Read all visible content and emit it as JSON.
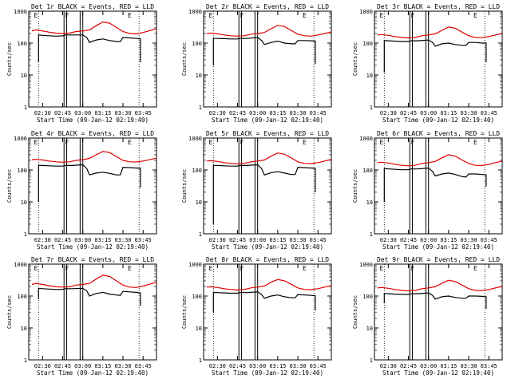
{
  "figure": {
    "panel_title_suffix": "BLACK = Events, RED = LLD",
    "ylabel": "Counts/sec",
    "xlabel": "Start Time (09-Jan-12 02:19:40)",
    "xticks": [
      "02:30",
      "02:45",
      "03:00",
      "03:15",
      "03:30",
      "03:45"
    ],
    "yticks": [
      "1",
      "10",
      "100",
      "1000"
    ],
    "marker_labels": [
      "E",
      "F",
      "E"
    ]
  },
  "colors": {
    "events": "#000000",
    "lld": "#e00000",
    "axes": "#000000"
  },
  "chart_data": [
    {
      "type": "line",
      "title": "Det 1r BLACK = Events, RED = LLD",
      "xlabel": "Start Time (09-Jan-12 02:19:40)",
      "ylabel": "Counts/sec",
      "yscale": "log",
      "ylim": [
        1,
        1000
      ],
      "xlim": [
        "02:19:40",
        "03:55"
      ],
      "series": [
        {
          "name": "Events",
          "x": [
            "02:27",
            "02:27",
            "02:30",
            "02:35",
            "02:40",
            "02:45",
            "02:47",
            "02:52",
            "03:00",
            "03:03",
            "03:05",
            "03:10",
            "03:15",
            "03:20",
            "03:25",
            "03:28",
            "03:30",
            "03:35",
            "03:40",
            "03:43",
            "03:43"
          ],
          "y": [
            25,
            180,
            175,
            170,
            165,
            168,
            180,
            180,
            180,
            150,
            105,
            125,
            135,
            120,
            112,
            110,
            150,
            145,
            140,
            135,
            25
          ]
        },
        {
          "name": "LLD",
          "x": [
            "02:22",
            "02:25",
            "02:30",
            "02:35",
            "02:40",
            "02:45",
            "02:50",
            "02:55",
            "03:00",
            "03:05",
            "03:10",
            "03:15",
            "03:20",
            "03:25",
            "03:30",
            "03:35",
            "03:40",
            "03:45",
            "03:50",
            "03:55"
          ],
          "y": [
            240,
            260,
            240,
            220,
            205,
            200,
            205,
            230,
            240,
            260,
            350,
            460,
            420,
            310,
            230,
            200,
            195,
            215,
            245,
            280
          ]
        }
      ]
    },
    {
      "type": "line",
      "title": "Det 2r BLACK = Events, RED = LLD",
      "xlabel": "Start Time (09-Jan-12 02:19:40)",
      "ylabel": "Counts/sec",
      "yscale": "log",
      "ylim": [
        1,
        1000
      ],
      "xlim": [
        "02:19:40",
        "03:55"
      ],
      "series": [
        {
          "name": "Events",
          "x": [
            "02:27",
            "02:27",
            "02:30",
            "02:35",
            "02:40",
            "02:45",
            "02:47",
            "02:52",
            "03:00",
            "03:03",
            "03:05",
            "03:10",
            "03:15",
            "03:20",
            "03:25",
            "03:28",
            "03:30",
            "03:35",
            "03:40",
            "03:43",
            "03:43"
          ],
          "y": [
            20,
            140,
            140,
            138,
            135,
            135,
            140,
            140,
            150,
            120,
            90,
            105,
            115,
            100,
            95,
            95,
            120,
            120,
            118,
            115,
            22
          ]
        },
        {
          "name": "LLD",
          "x": [
            "02:22",
            "02:25",
            "02:30",
            "02:35",
            "02:40",
            "02:45",
            "02:50",
            "02:55",
            "03:00",
            "03:05",
            "03:10",
            "03:15",
            "03:20",
            "03:25",
            "03:30",
            "03:35",
            "03:40",
            "03:45",
            "03:50",
            "03:55"
          ],
          "y": [
            200,
            205,
            195,
            180,
            170,
            165,
            170,
            190,
            200,
            215,
            280,
            360,
            330,
            250,
            190,
            170,
            165,
            180,
            200,
            225
          ]
        }
      ]
    },
    {
      "type": "line",
      "title": "Det 3r BLACK = Events, RED = LLD",
      "xlabel": "Start Time (09-Jan-12 02:19:40)",
      "ylabel": "Counts/sec",
      "yscale": "log",
      "ylim": [
        1,
        1000
      ],
      "xlim": [
        "02:19:40",
        "03:55"
      ],
      "series": [
        {
          "name": "Events",
          "x": [
            "02:27",
            "02:27",
            "02:30",
            "02:35",
            "02:40",
            "02:45",
            "02:47",
            "02:52",
            "03:00",
            "03:03",
            "03:05",
            "03:10",
            "03:15",
            "03:20",
            "03:25",
            "03:28",
            "03:30",
            "03:35",
            "03:40",
            "03:43",
            "03:43"
          ],
          "y": [
            12,
            120,
            118,
            115,
            112,
            112,
            118,
            118,
            125,
            105,
            80,
            95,
            100,
            90,
            85,
            85,
            105,
            105,
            100,
            100,
            25
          ]
        },
        {
          "name": "LLD",
          "x": [
            "02:22",
            "02:25",
            "02:30",
            "02:35",
            "02:40",
            "02:45",
            "02:50",
            "02:55",
            "03:00",
            "03:05",
            "03:10",
            "03:15",
            "03:20",
            "03:25",
            "03:30",
            "03:35",
            "03:40",
            "03:45",
            "03:50",
            "03:55"
          ],
          "y": [
            180,
            185,
            175,
            160,
            150,
            145,
            150,
            170,
            180,
            195,
            250,
            320,
            290,
            220,
            170,
            150,
            148,
            160,
            180,
            200
          ]
        }
      ]
    },
    {
      "type": "line",
      "title": "Det 4r BLACK = Events, RED = LLD",
      "xlabel": "Start Time (09-Jan-12 02:19:40)",
      "ylabel": "Counts/sec",
      "yscale": "log",
      "ylim": [
        1,
        1000
      ],
      "xlim": [
        "02:19:40",
        "03:55"
      ],
      "series": [
        {
          "name": "Events",
          "x": [
            "02:27",
            "02:27",
            "02:30",
            "02:35",
            "02:40",
            "02:45",
            "02:47",
            "02:52",
            "03:00",
            "03:03",
            "03:05",
            "03:10",
            "03:15",
            "03:20",
            "03:25",
            "03:28",
            "03:30",
            "03:35",
            "03:40",
            "03:43",
            "03:43"
          ],
          "y": [
            10,
            140,
            138,
            135,
            132,
            132,
            138,
            138,
            145,
            110,
            70,
            80,
            85,
            78,
            70,
            70,
            120,
            118,
            115,
            112,
            28
          ]
        },
        {
          "name": "LLD",
          "x": [
            "02:22",
            "02:25",
            "02:30",
            "02:35",
            "02:40",
            "02:45",
            "02:50",
            "02:55",
            "03:00",
            "03:05",
            "03:10",
            "03:15",
            "03:20",
            "03:25",
            "03:30",
            "03:35",
            "03:40",
            "03:45",
            "03:50",
            "03:55"
          ],
          "y": [
            210,
            215,
            205,
            190,
            180,
            175,
            180,
            200,
            210,
            230,
            300,
            380,
            350,
            265,
            200,
            180,
            178,
            190,
            210,
            235
          ]
        }
      ]
    },
    {
      "type": "line",
      "title": "Det 5r BLACK = Events, RED = LLD",
      "xlabel": "Start Time (09-Jan-12 02:19:40)",
      "ylabel": "Counts/sec",
      "yscale": "log",
      "ylim": [
        1,
        1000
      ],
      "xlim": [
        "02:19:40",
        "03:55"
      ],
      "series": [
        {
          "name": "Events",
          "x": [
            "02:27",
            "02:27",
            "02:30",
            "02:35",
            "02:40",
            "02:45",
            "02:47",
            "02:52",
            "03:00",
            "03:03",
            "03:05",
            "03:10",
            "03:15",
            "03:20",
            "03:25",
            "03:28",
            "03:30",
            "03:35",
            "03:40",
            "03:43",
            "03:43"
          ],
          "y": [
            2,
            140,
            138,
            135,
            132,
            132,
            138,
            138,
            145,
            110,
            70,
            82,
            88,
            80,
            72,
            72,
            120,
            118,
            115,
            112,
            20
          ]
        },
        {
          "name": "LLD",
          "x": [
            "02:22",
            "02:25",
            "02:30",
            "02:35",
            "02:40",
            "02:45",
            "02:50",
            "02:55",
            "03:00",
            "03:05",
            "03:10",
            "03:15",
            "03:20",
            "03:25",
            "03:30",
            "03:35",
            "03:40",
            "03:45",
            "03:50",
            "03:55"
          ],
          "y": [
            190,
            195,
            185,
            170,
            160,
            155,
            160,
            180,
            190,
            205,
            270,
            340,
            310,
            240,
            180,
            160,
            158,
            170,
            190,
            215
          ]
        }
      ]
    },
    {
      "type": "line",
      "title": "Det 6r BLACK = Events, RED = LLD",
      "xlabel": "Start Time (09-Jan-12 02:19:40)",
      "ylabel": "Counts/sec",
      "yscale": "log",
      "ylim": [
        1,
        1000
      ],
      "xlim": [
        "02:19:40",
        "03:55"
      ],
      "series": [
        {
          "name": "Events",
          "x": [
            "02:27",
            "02:27",
            "02:30",
            "02:35",
            "02:40",
            "02:45",
            "02:47",
            "02:52",
            "03:00",
            "03:03",
            "03:05",
            "03:10",
            "03:15",
            "03:20",
            "03:25",
            "03:28",
            "03:30",
            "03:35",
            "03:40",
            "03:43",
            "03:43"
          ],
          "y": [
            10,
            110,
            108,
            105,
            102,
            102,
            108,
            108,
            115,
            90,
            65,
            75,
            80,
            72,
            62,
            60,
            75,
            75,
            72,
            70,
            30
          ]
        },
        {
          "name": "LLD",
          "x": [
            "02:22",
            "02:25",
            "02:30",
            "02:35",
            "02:40",
            "02:45",
            "02:50",
            "02:55",
            "03:00",
            "03:05",
            "03:10",
            "03:15",
            "03:20",
            "03:25",
            "03:30",
            "03:35",
            "03:40",
            "03:45",
            "03:50",
            "03:55"
          ],
          "y": [
            170,
            175,
            165,
            150,
            140,
            135,
            140,
            160,
            170,
            185,
            240,
            300,
            270,
            205,
            160,
            140,
            138,
            150,
            170,
            190
          ]
        }
      ]
    },
    {
      "type": "line",
      "title": "Det 7r BLACK = Events, RED = LLD",
      "xlabel": "Start Time (09-Jan-12 02:19:40)",
      "ylabel": "Counts/sec",
      "yscale": "log",
      "ylim": [
        1,
        1000
      ],
      "xlim": [
        "02:19:40",
        "03:55"
      ],
      "series": [
        {
          "name": "Events",
          "x": [
            "02:27",
            "02:27",
            "02:30",
            "02:35",
            "02:40",
            "02:45",
            "02:47",
            "02:52",
            "03:00",
            "03:03",
            "03:05",
            "03:10",
            "03:15",
            "03:20",
            "03:25",
            "03:28",
            "03:30",
            "03:35",
            "03:40",
            "03:43",
            "03:43"
          ],
          "y": [
            80,
            175,
            170,
            165,
            160,
            162,
            170,
            170,
            175,
            145,
            100,
            120,
            130,
            115,
            108,
            105,
            140,
            135,
            130,
            125,
            50
          ]
        },
        {
          "name": "LLD",
          "x": [
            "02:22",
            "02:25",
            "02:30",
            "02:35",
            "02:40",
            "02:45",
            "02:50",
            "02:55",
            "03:00",
            "03:05",
            "03:10",
            "03:15",
            "03:20",
            "03:25",
            "03:30",
            "03:35",
            "03:40",
            "03:45",
            "03:50",
            "03:55"
          ],
          "y": [
            230,
            250,
            230,
            210,
            195,
            190,
            195,
            220,
            230,
            250,
            340,
            450,
            410,
            300,
            220,
            190,
            185,
            205,
            235,
            270
          ]
        }
      ]
    },
    {
      "type": "line",
      "title": "Det 8r BLACK = Events, RED = LLD",
      "xlabel": "Start Time (09-Jan-12 02:19:40)",
      "ylabel": "Counts/sec",
      "yscale": "log",
      "ylim": [
        1,
        1000
      ],
      "xlim": [
        "02:19:40",
        "03:55"
      ],
      "series": [
        {
          "name": "Events",
          "x": [
            "02:27",
            "02:27",
            "02:30",
            "02:35",
            "02:40",
            "02:45",
            "02:47",
            "02:52",
            "03:00",
            "03:03",
            "03:05",
            "03:10",
            "03:15",
            "03:20",
            "03:25",
            "03:28",
            "03:30",
            "03:35",
            "03:40",
            "03:43",
            "03:43"
          ],
          "y": [
            30,
            130,
            128,
            125,
            122,
            122,
            128,
            128,
            135,
            110,
            85,
            100,
            108,
            95,
            88,
            88,
            110,
            108,
            105,
            102,
            35
          ]
        },
        {
          "name": "LLD",
          "x": [
            "02:22",
            "02:25",
            "02:30",
            "02:35",
            "02:40",
            "02:45",
            "02:50",
            "02:55",
            "03:00",
            "03:05",
            "03:10",
            "03:15",
            "03:20",
            "03:25",
            "03:30",
            "03:35",
            "03:40",
            "03:45",
            "03:50",
            "03:55"
          ],
          "y": [
            190,
            195,
            185,
            170,
            160,
            155,
            160,
            180,
            190,
            205,
            270,
            330,
            300,
            235,
            180,
            160,
            158,
            170,
            190,
            210
          ]
        }
      ]
    },
    {
      "type": "line",
      "title": "Det 9r BLACK = Events, RED = LLD",
      "xlabel": "Start Time (09-Jan-12 02:19:40)",
      "ylabel": "Counts/sec",
      "yscale": "log",
      "ylim": [
        1,
        1000
      ],
      "xlim": [
        "02:19:40",
        "03:55"
      ],
      "series": [
        {
          "name": "Events",
          "x": [
            "02:27",
            "02:27",
            "02:30",
            "02:35",
            "02:40",
            "02:45",
            "02:47",
            "02:52",
            "03:00",
            "03:03",
            "03:05",
            "03:10",
            "03:15",
            "03:20",
            "03:25",
            "03:28",
            "03:30",
            "03:35",
            "03:40",
            "03:43",
            "03:43"
          ],
          "y": [
            60,
            120,
            118,
            115,
            112,
            112,
            118,
            118,
            125,
            105,
            80,
            95,
            100,
            90,
            85,
            85,
            100,
            100,
            98,
            95,
            40
          ]
        },
        {
          "name": "LLD",
          "x": [
            "02:22",
            "02:25",
            "02:30",
            "02:35",
            "02:40",
            "02:45",
            "02:50",
            "02:55",
            "03:00",
            "03:05",
            "03:10",
            "03:15",
            "03:20",
            "03:25",
            "03:30",
            "03:35",
            "03:40",
            "03:45",
            "03:50",
            "03:55"
          ],
          "y": [
            180,
            185,
            175,
            160,
            150,
            145,
            150,
            170,
            180,
            195,
            250,
            310,
            285,
            220,
            170,
            150,
            148,
            160,
            180,
            200
          ]
        }
      ]
    }
  ]
}
